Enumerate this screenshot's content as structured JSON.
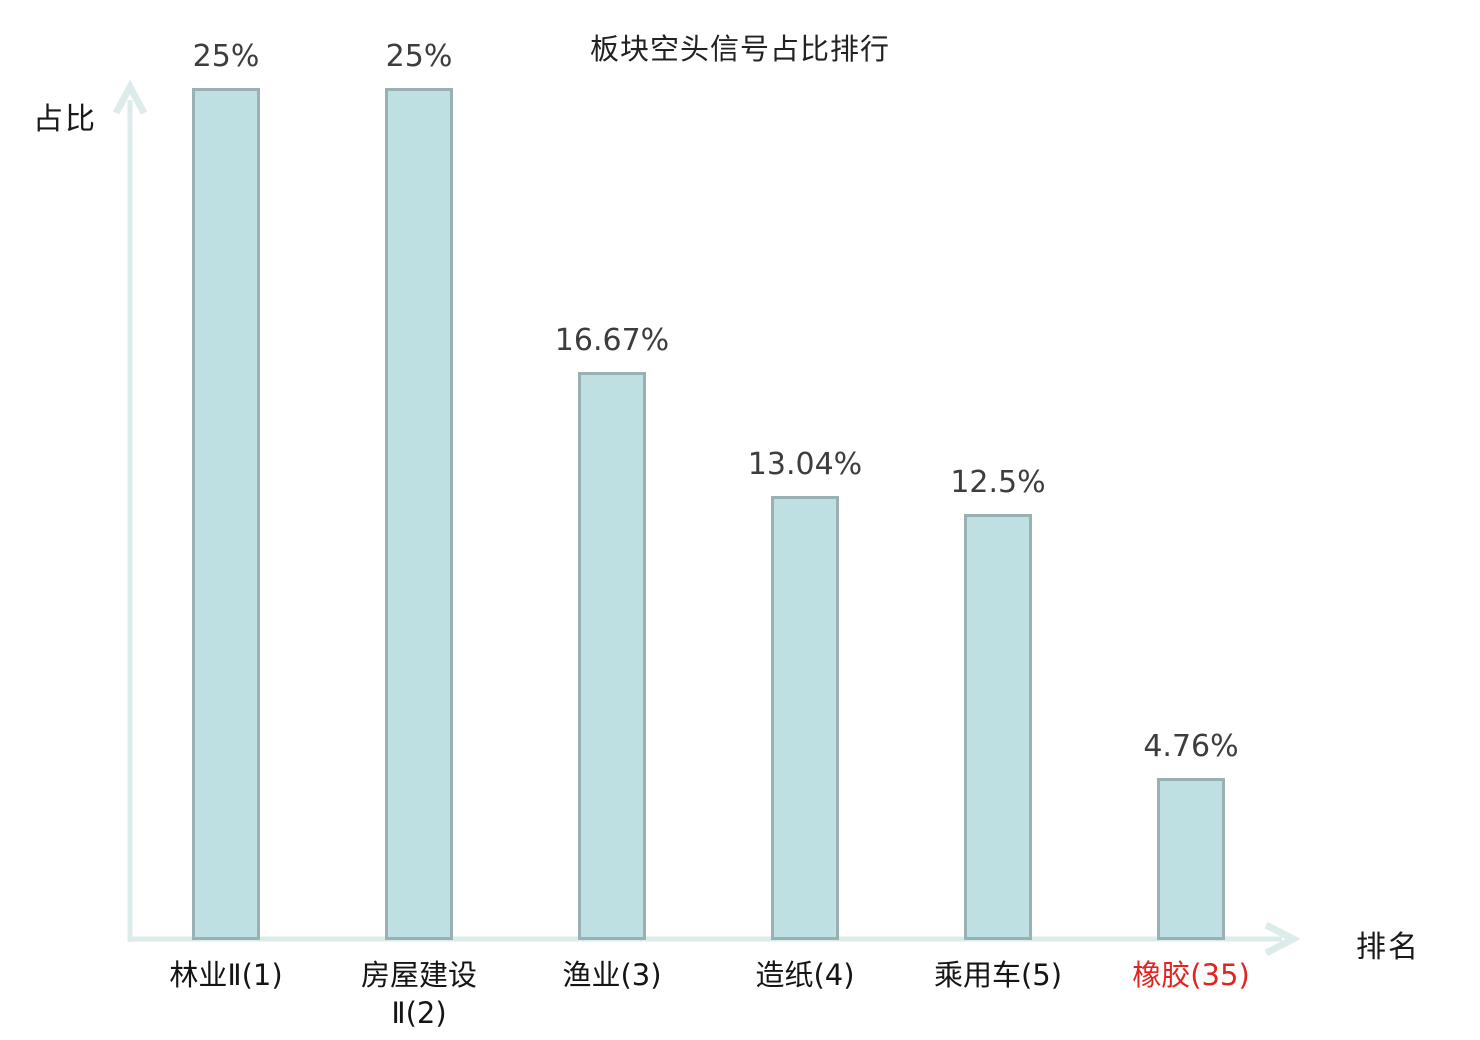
{
  "title": "板块空头信号占比排行",
  "chart_data": {
    "type": "bar",
    "title": "板块空头信号占比排行",
    "xlabel": "排名",
    "ylabel": "占比",
    "categories": [
      "林业Ⅱ(1)",
      "房屋建设\nⅡ(2)",
      "渔业(3)",
      "造纸(4)",
      "乘用车(5)",
      "橡胶(35)"
    ],
    "ranks": [
      1,
      2,
      3,
      4,
      5,
      35
    ],
    "values": [
      25,
      25,
      16.67,
      13.04,
      12.5,
      4.76
    ],
    "value_labels": [
      "25%",
      "25%",
      "16.67%",
      "13.04%",
      "12.5%",
      "4.76%"
    ],
    "highlight_index": 5,
    "ylim": [
      0,
      25
    ],
    "grid": false,
    "legend": null,
    "colors": {
      "background": "#ffffff",
      "bar_fill": "#bfe0e3",
      "bar_border": "#9ab1b3",
      "axis": "#dcecea",
      "value_label": "#3d3d3d",
      "category_label": "#151515",
      "highlight_label": "#e02420"
    }
  }
}
